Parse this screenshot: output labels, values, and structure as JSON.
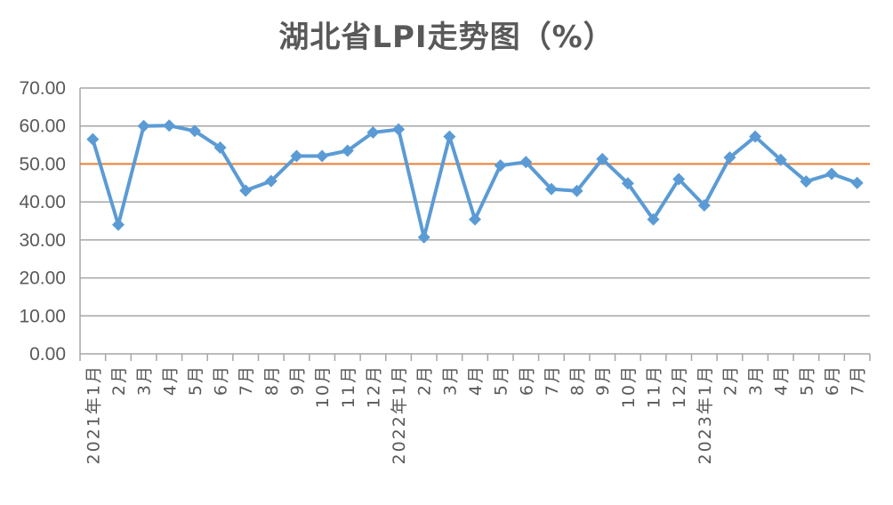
{
  "chart_data": {
    "type": "line",
    "title": "湖北省LPI走势图（%）",
    "ylim": [
      0,
      70
    ],
    "yticks": [
      "0.00",
      "10.00",
      "20.00",
      "30.00",
      "40.00",
      "50.00",
      "60.00",
      "70.00"
    ],
    "reference_line": 50,
    "categories": [
      "2021年1月",
      "2月",
      "3月",
      "4月",
      "5月",
      "6月",
      "7月",
      "8月",
      "9月",
      "10月",
      "11月",
      "12月",
      "2022年1月",
      "2月",
      "3月",
      "4月",
      "5月",
      "6月",
      "7月",
      "8月",
      "9月",
      "10月",
      "11月",
      "12月",
      "2023年1月",
      "2月",
      "3月",
      "4月",
      "5月",
      "6月",
      "7月"
    ],
    "series": [
      {
        "values": [
          56.5,
          34.0,
          60.0,
          60.1,
          58.7,
          54.3,
          43.0,
          45.5,
          52.1,
          52.1,
          53.5,
          58.3,
          59.1,
          30.7,
          57.2,
          35.4,
          49.6,
          50.5,
          43.4,
          42.9,
          51.3,
          44.9,
          35.4,
          46.0,
          39.1,
          51.7,
          57.2,
          51.1,
          45.4,
          47.4,
          45.0
        ]
      }
    ],
    "colors": {
      "line": "#5b9bd5",
      "reference": "#ed7d31",
      "grid": "#a6a6a6",
      "text": "#595959"
    },
    "grid": true,
    "legend": "none"
  }
}
